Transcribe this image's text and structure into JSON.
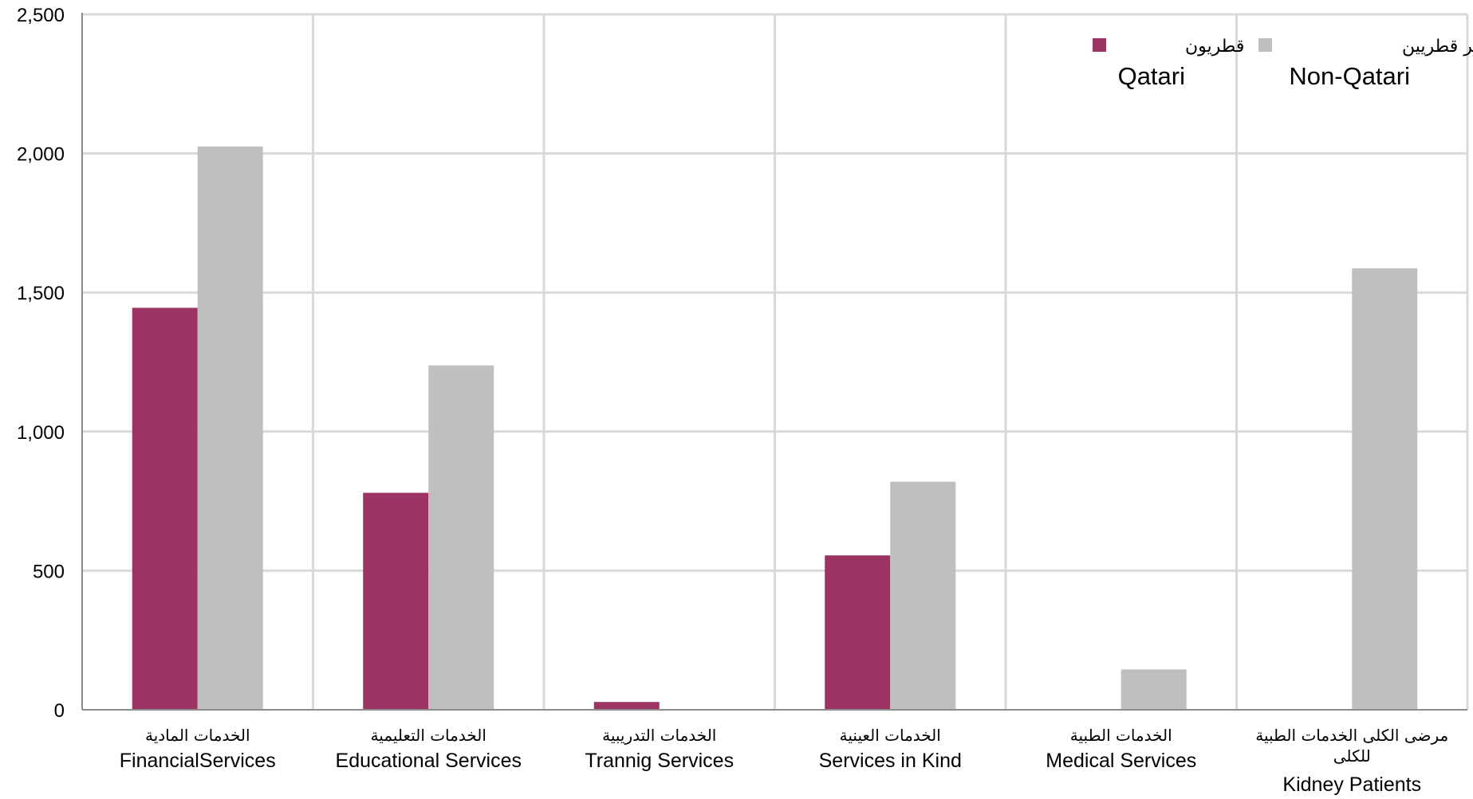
{
  "chart_data": {
    "type": "bar",
    "title": "",
    "xlabel": "",
    "ylabel": "",
    "ylim": [
      0,
      2500
    ],
    "yticks": [
      0,
      500,
      1000,
      1500,
      2000,
      2500
    ],
    "ytick_labels": [
      "0",
      "500",
      "1,000",
      "1,500",
      "2,000",
      "2,500"
    ],
    "grid": true,
    "legend_position": "top-right",
    "categories": [
      {
        "ar": "الخدمات  المادية",
        "en": "FinancialServices"
      },
      {
        "ar": "الخدمات التعليمية",
        "en": "Educational Services"
      },
      {
        "ar": "الخدمات التدريبية",
        "en": "Trannig Services"
      },
      {
        "ar": "الخدمات العينية",
        "en": "Services in Kind"
      },
      {
        "ar": "الخدمات الطبية",
        "en": "Medical Services"
      },
      {
        "ar": "مرضى الكلى الخدمات الطبية\nللكلى",
        "en": "Kidney Patients"
      }
    ],
    "series": [
      {
        "name": "Qatari",
        "name_ar": "قطريون",
        "color": "#9b3363",
        "values": [
          1445,
          780,
          28,
          555,
          0,
          0
        ]
      },
      {
        "name": "Non-Qatari",
        "name_ar": "غير قطريين",
        "color": "#bfbfbf",
        "values": [
          2025,
          1238,
          0,
          820,
          145,
          1587
        ]
      }
    ]
  }
}
